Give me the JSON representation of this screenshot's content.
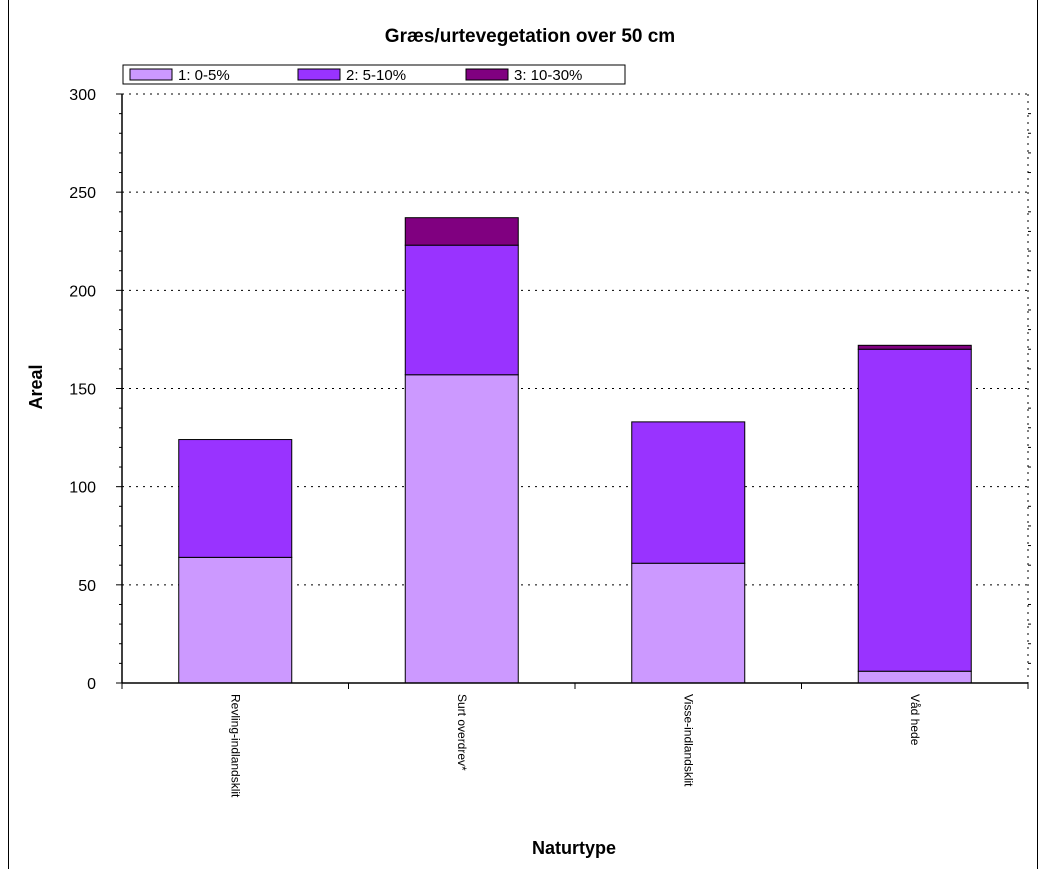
{
  "chart_data": {
    "type": "bar",
    "stacked": true,
    "title": "Græs/urtevegetation over 50 cm",
    "xlabel": "Naturtype",
    "ylabel": "Areal",
    "ylim": [
      0,
      300
    ],
    "yticks": [
      0,
      50,
      100,
      150,
      200,
      250,
      300
    ],
    "grid": true,
    "legend_position": "top-left",
    "categories": [
      "Revling-indlandsklit",
      "Surt overdrev*",
      "Visse-indlandsklit",
      "Våd hede"
    ],
    "series": [
      {
        "name": "1: 0-5%",
        "color": "#cc99ff",
        "values": [
          64,
          157,
          61,
          6
        ]
      },
      {
        "name": "2: 5-10%",
        "color": "#9933ff",
        "values": [
          60,
          66,
          72,
          164
        ]
      },
      {
        "name": "3: 10-30%",
        "color": "#800080",
        "values": [
          0,
          14,
          0,
          2
        ]
      }
    ]
  }
}
